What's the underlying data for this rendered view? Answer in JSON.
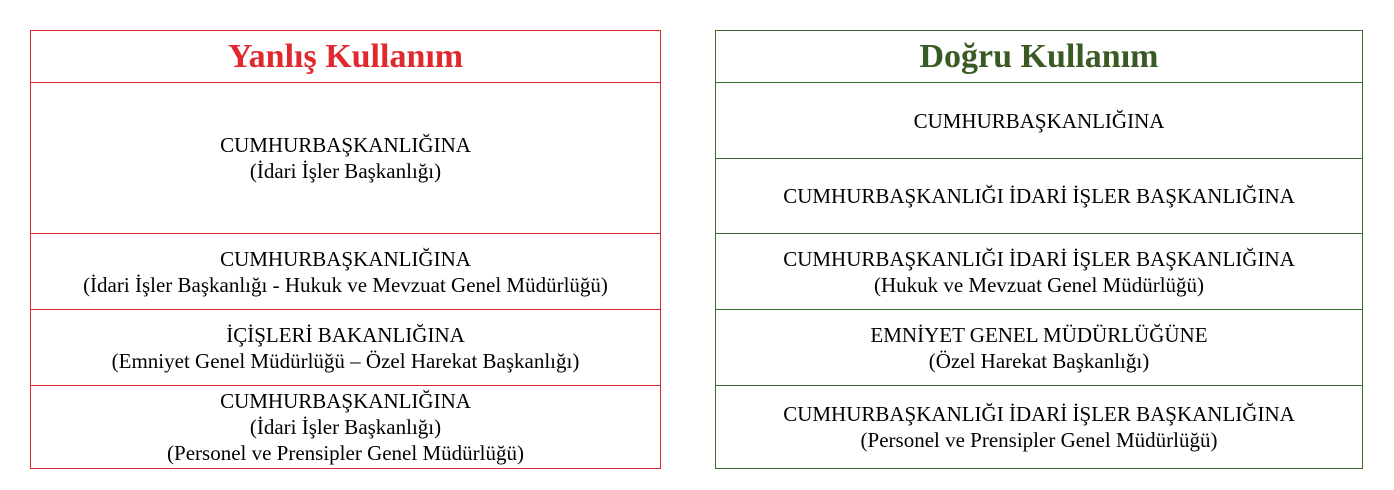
{
  "wrong": {
    "title": "Yanlış Kullanım",
    "rows": [
      [
        "CUMHURBAŞKANLIĞINA",
        "(İdari İşler Başkanlığı)"
      ],
      [
        "CUMHURBAŞKANLIĞINA",
        "(İdari İşler Başkanlığı - Hukuk ve Mevzuat Genel Müdürlüğü)"
      ],
      [
        "İÇİŞLERİ BAKANLIĞINA",
        "(Emniyet Genel Müdürlüğü – Özel Harekat Başkanlığı)"
      ],
      [
        "CUMHURBAŞKANLIĞINA",
        "(İdari İşler Başkanlığı)",
        "(Personel ve Prensipler Genel Müdürlüğü)"
      ]
    ]
  },
  "right": {
    "title": "Doğru Kullanım",
    "rows": [
      [
        "CUMHURBAŞKANLIĞINA"
      ],
      [
        "CUMHURBAŞKANLIĞI İDARİ İŞLER BAŞKANLIĞINA"
      ],
      [
        "CUMHURBAŞKANLIĞI İDARİ İŞLER BAŞKANLIĞINA",
        "(Hukuk ve Mevzuat Genel Müdürlüğü)"
      ],
      [
        "EMNİYET GENEL MÜDÜRLÜĞÜNE",
        "(Özel Harekat Başkanlığı)"
      ],
      [
        "CUMHURBAŞKANLIĞI İDARİ İŞLER BAŞKANLIĞINA",
        "(Personel ve Prensipler Genel Müdürlüğü)"
      ]
    ]
  },
  "colors": {
    "wrong_accent": "#e0282f",
    "right_accent": "#3a6b2a"
  }
}
